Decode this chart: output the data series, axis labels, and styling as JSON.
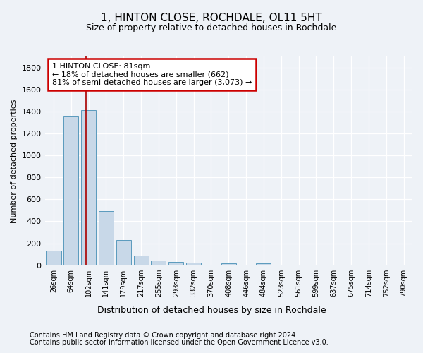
{
  "title": "1, HINTON CLOSE, ROCHDALE, OL11 5HT",
  "subtitle": "Size of property relative to detached houses in Rochdale",
  "xlabel": "Distribution of detached houses by size in Rochdale",
  "ylabel": "Number of detached properties",
  "bar_labels": [
    "26sqm",
    "64sqm",
    "102sqm",
    "141sqm",
    "179sqm",
    "217sqm",
    "255sqm",
    "293sqm",
    "332sqm",
    "370sqm",
    "408sqm",
    "446sqm",
    "484sqm",
    "523sqm",
    "561sqm",
    "599sqm",
    "637sqm",
    "675sqm",
    "714sqm",
    "752sqm",
    "790sqm"
  ],
  "bar_values": [
    135,
    1355,
    1410,
    490,
    228,
    85,
    45,
    28,
    22,
    0,
    20,
    0,
    20,
    0,
    0,
    0,
    0,
    0,
    0,
    0,
    0
  ],
  "bar_color": "#c8d8e8",
  "bar_edge_color": "#5a9abd",
  "ylim": [
    0,
    1900
  ],
  "yticks": [
    0,
    200,
    400,
    600,
    800,
    1000,
    1200,
    1400,
    1600,
    1800
  ],
  "property_line_x": 1.85,
  "annotation_text": "1 HINTON CLOSE: 81sqm\n← 18% of detached houses are smaller (662)\n81% of semi-detached houses are larger (3,073) →",
  "annotation_box_color": "#ffffff",
  "annotation_box_edge_color": "#cc0000",
  "footer_line1": "Contains HM Land Registry data © Crown copyright and database right 2024.",
  "footer_line2": "Contains public sector information licensed under the Open Government Licence v3.0.",
  "background_color": "#eef2f7",
  "grid_color": "#ffffff",
  "fig_width": 6.0,
  "fig_height": 5.0,
  "dpi": 100
}
